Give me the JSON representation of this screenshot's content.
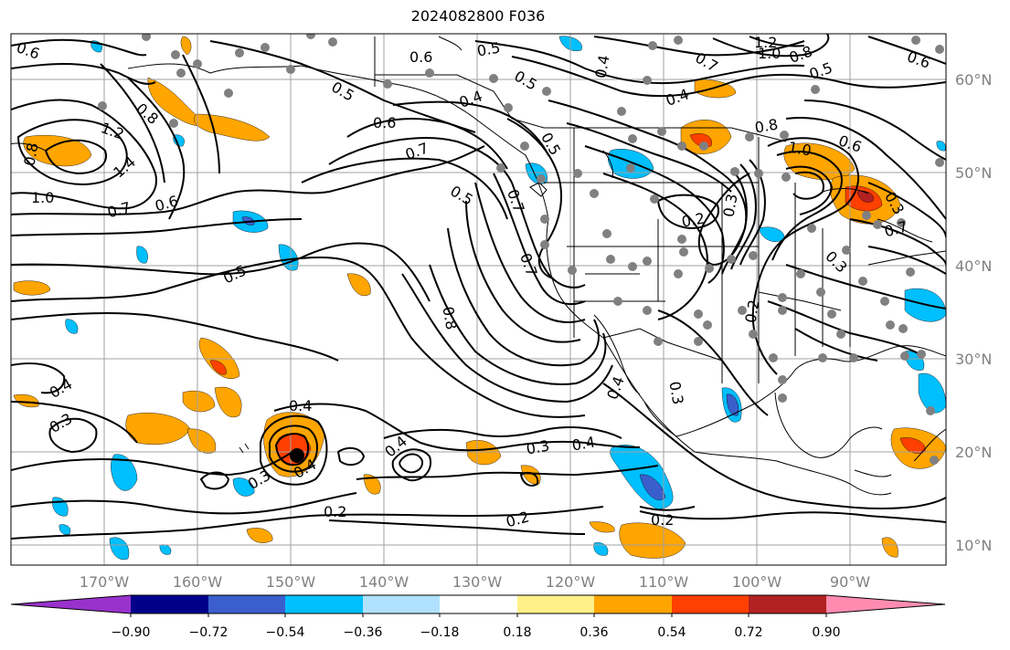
{
  "title": "2024082800 F036",
  "lat_labels": [
    "60°N",
    "50°N",
    "40°N",
    "30°N",
    "20°N",
    "10°N"
  ],
  "lon_labels": [
    "170°W",
    "160°W",
    "150°W",
    "140°W",
    "130°W",
    "120°W",
    "110°W",
    "100°W",
    "90°W"
  ],
  "colorbar": {
    "colors": [
      "#9932cc",
      "#00008b",
      "#3a5fcd",
      "#00bfff",
      "#b0e2ff",
      "#ffffff",
      "#fff08a",
      "#ffa500",
      "#ff4000",
      "#b22222",
      "#ff8cb0"
    ],
    "tick_labels": [
      "−0.90",
      "−0.72",
      "−0.54",
      "−0.36",
      "−0.18",
      "0.18",
      "0.36",
      "0.54",
      "0.72",
      "0.90"
    ]
  },
  "contour_labels": [
    "0.6",
    "0.6",
    "0.5",
    "0.5",
    "0.5",
    "1.2",
    "1.0",
    "0.8",
    "0.5",
    "0.6",
    "0.7",
    "0.4",
    "0.4",
    "0.8",
    "1.2",
    "1.4",
    "1.0",
    "0.8",
    "0.7",
    "0.6",
    "0.6",
    "0.7",
    "0.5",
    "0.5",
    "0.7",
    "1.0",
    "0.8",
    "0.6",
    "0.2",
    "0.3",
    "0.5",
    "0.7",
    "0.3",
    "0.7",
    "0.8",
    "0.2",
    "0.4",
    "0.3",
    "0.4",
    "0.3",
    "0.4",
    "0.3",
    "0.4",
    "0.2",
    "0.3",
    "0.4",
    "0.4",
    "0.2",
    "0.2",
    "0.4",
    "0.3"
  ]
}
